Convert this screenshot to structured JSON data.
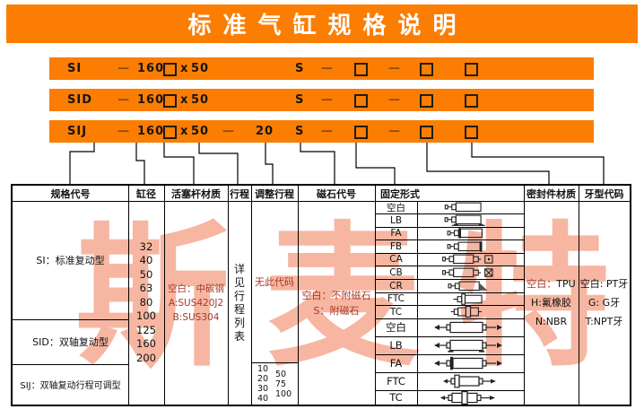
{
  "title": "标准气缸规格说明",
  "bars": [
    {
      "model": "SI",
      "dash_a": "—",
      "bore": "160",
      "times": "x",
      "stroke": "50",
      "magnet": "S",
      "dash_b": "—",
      "dash_c": "—"
    },
    {
      "model": "SID",
      "dash_a": "—",
      "bore": "160",
      "times": "x",
      "stroke": "50",
      "magnet": "S",
      "dash_b": "—",
      "dash_c": "—"
    },
    {
      "model": "SIJ",
      "dash_a": "—",
      "bore": "160",
      "times": "x",
      "stroke": "50",
      "dash_adj": "—",
      "adjust": "20",
      "magnet": "S",
      "dash_b": "—",
      "dash_c": "—"
    }
  ],
  "table": {
    "headers": {
      "spec": "规格代号",
      "bore": "缸径",
      "rod": "活塞杆材质",
      "stroke": "行程",
      "adjust": "调整行程",
      "magnet": "磁石代号",
      "mount": "固定形式",
      "seal": "密封件材质",
      "thread": "牙型代码"
    },
    "spec_rows": [
      "SI：标准复动型",
      "SID：双轴复动型",
      "SIJ：双轴复动行程可调型"
    ],
    "bore_values": [
      "32",
      "40",
      "50",
      "63",
      "80",
      "100",
      "125",
      "160",
      "200"
    ],
    "rod_lines": [
      "空白：中碳钢",
      "A:SUS420J2",
      "B:SUS304"
    ],
    "stroke_chars": [
      "详",
      "见",
      "行",
      "程",
      "列",
      "表"
    ],
    "adjust": {
      "none": "无此代码",
      "col1": [
        "10",
        "20",
        "30",
        "40"
      ],
      "col2": [
        "50",
        "75",
        "100"
      ]
    },
    "magnet_lines": [
      "空白：不附磁石",
      "S：附磁石"
    ],
    "mount_rows": [
      {
        "label": "空白",
        "icon": "basic"
      },
      {
        "label": "LB",
        "icon": "foot"
      },
      {
        "label": "FA",
        "icon": "front-flange"
      },
      {
        "label": "FB",
        "icon": "rear-flange"
      },
      {
        "label": "CA",
        "icon": "single-clevis"
      },
      {
        "label": "CB",
        "icon": "double-clevis"
      },
      {
        "label": "CR",
        "icon": "rear-pivot"
      },
      {
        "label": "FTC",
        "icon": "front-trunnion"
      },
      {
        "label": "TC",
        "icon": "center-trunnion"
      },
      {
        "label": "空白",
        "icon": "double-rod-basic"
      },
      {
        "label": "LB",
        "icon": "double-rod-foot"
      },
      {
        "label": "FA",
        "icon": "double-rod-flange"
      },
      {
        "label": "FTC",
        "icon": "double-rod-front-trunnion"
      },
      {
        "label": "TC",
        "icon": "double-rod-center-trunnion"
      }
    ],
    "seal": {
      "line1_key": "空白：",
      "line1_val": "TPU",
      "line2": "H:氟橡胶",
      "line3": "N:NBR"
    },
    "thread_lines": [
      "空白: PT牙",
      "G: G牙",
      "T:NPT牙"
    ]
  },
  "watermark": "斯麦特",
  "colors": {
    "orange": "#fb7d01",
    "accent_red": "#a63a25",
    "watermark_pink": "#f7b6a1"
  }
}
